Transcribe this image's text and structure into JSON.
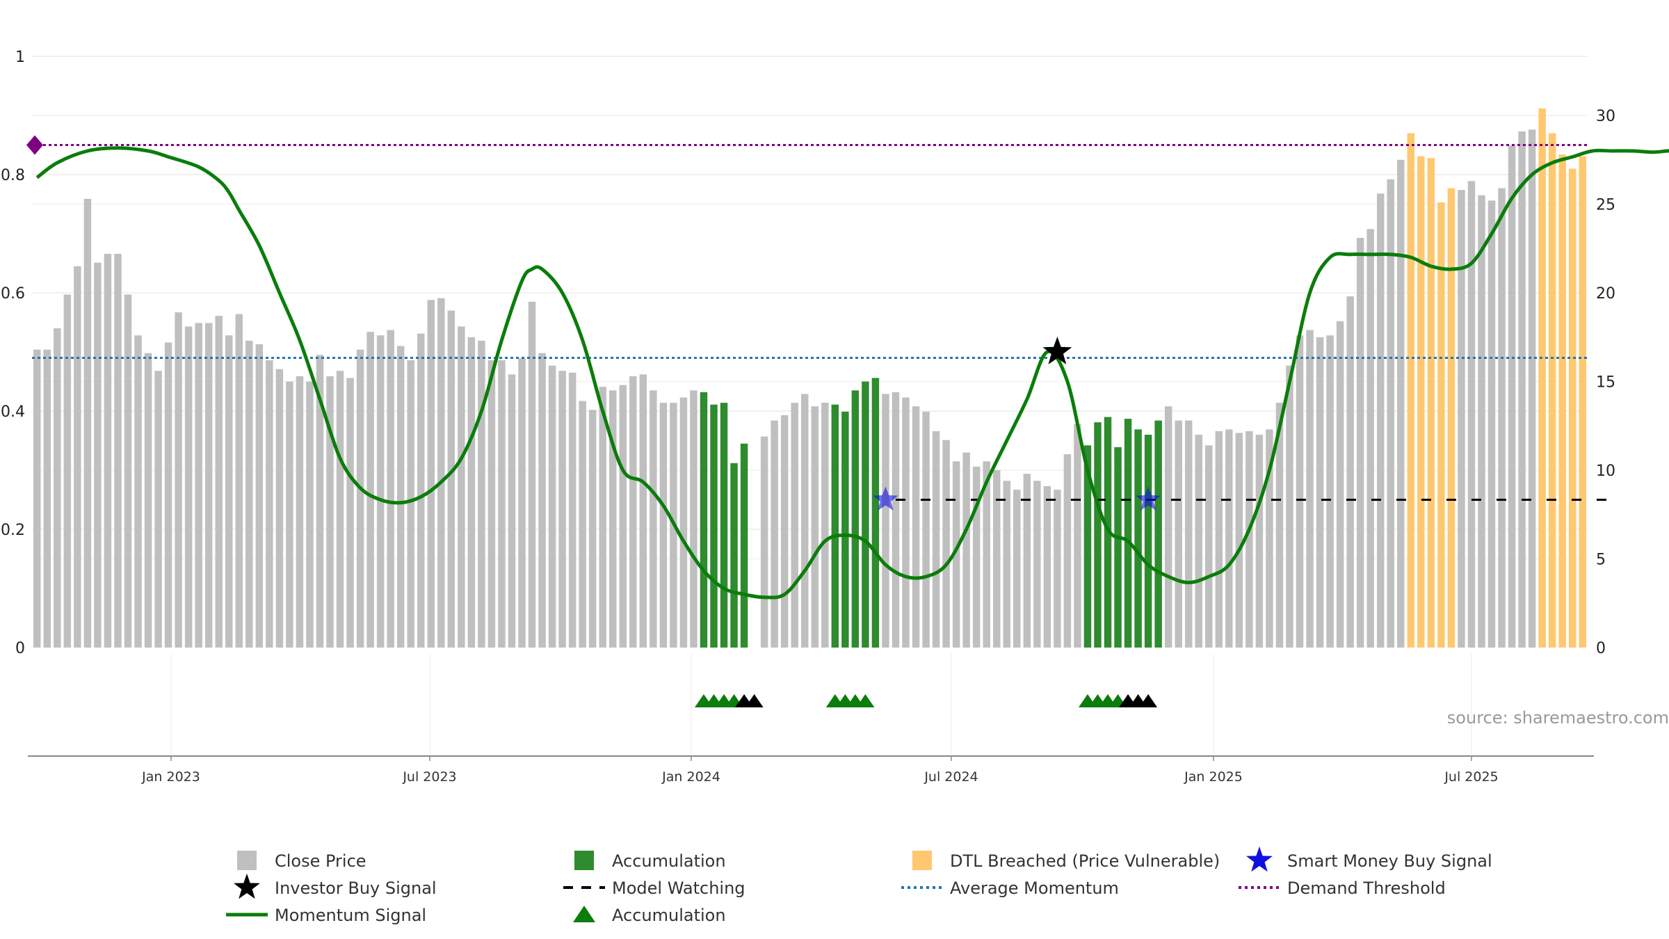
{
  "chart_data": {
    "type": "bar",
    "source": "source: sharemaestro.com",
    "y_left": {
      "ticks": [
        "0",
        "0.2",
        "0.4",
        "0.6",
        "0.8",
        "1"
      ],
      "range": [
        0,
        1
      ]
    },
    "y_right": {
      "ticks": [
        "0",
        "5",
        "10",
        "15",
        "20",
        "25",
        "30"
      ],
      "range": [
        0,
        30
      ]
    },
    "x_axis": {
      "ticks": [
        "Jan 2023",
        "Jul 2023",
        "Jan 2024",
        "Jul 2024",
        "Jan 2025",
        "Jul 2025"
      ]
    },
    "colors": {
      "close": "#bfbfbf",
      "accumulation": "#2e8b2e",
      "dtl": "#ffc870",
      "momentum": "#0a7d0a",
      "avg_momentum": "#1f77b4",
      "demand": "#800080",
      "watch": "#000000",
      "smart_money": "#1010e0",
      "investor": "#000000"
    },
    "close_prices": [
      16.8,
      16.8,
      18.0,
      19.9,
      21.5,
      25.3,
      21.7,
      22.2,
      22.2,
      19.9,
      17.6,
      16.6,
      15.6,
      17.2,
      18.9,
      18.1,
      18.3,
      18.3,
      18.7,
      17.6,
      18.8,
      17.3,
      17.1,
      16.2,
      15.7,
      15.0,
      15.3,
      15.0,
      16.5,
      15.3,
      15.6,
      15.2,
      16.8,
      17.8,
      17.6,
      17.9,
      17.0,
      16.2,
      17.7,
      19.6,
      19.7,
      19.0,
      18.1,
      17.5,
      17.3,
      16.2,
      16.2,
      15.4,
      16.3,
      19.5,
      16.6,
      15.9,
      15.6,
      15.5,
      13.9,
      13.4,
      14.7,
      14.5,
      14.8,
      15.3,
      15.4,
      14.5,
      13.8,
      13.8,
      14.1,
      14.5,
      14.4,
      13.7,
      13.8,
      10.4,
      11.5,
      null,
      11.9,
      12.8,
      13.1,
      13.8,
      14.3,
      13.6,
      13.8,
      13.7,
      13.3,
      14.5,
      15.0,
      15.2,
      14.3,
      14.4,
      14.1,
      13.6,
      13.3,
      12.2,
      11.7,
      10.5,
      11.0,
      10.2,
      10.5,
      10.0,
      9.4,
      8.9,
      9.8,
      9.4,
      9.1,
      8.9,
      10.9,
      12.6,
      11.4,
      12.7,
      13.0,
      11.3,
      12.9,
      12.3,
      12.0,
      12.8,
      13.6,
      12.8,
      12.8,
      12.0,
      11.4,
      12.2,
      12.3,
      12.1,
      12.2,
      12.0,
      12.3,
      13.8,
      15.9,
      17.6,
      17.9,
      17.5,
      17.6,
      18.4,
      19.8,
      23.1,
      23.6,
      25.6,
      26.4,
      27.5,
      29.0,
      27.7,
      27.6,
      25.1,
      25.9,
      25.8,
      26.3,
      25.5,
      25.2,
      25.9,
      28.3,
      29.1,
      29.2,
      30.4,
      29.0,
      27.8,
      27.0,
      27.7
    ],
    "accumulation_bars": [
      66,
      67,
      68,
      69,
      70,
      79,
      80,
      81,
      82,
      83,
      104,
      105,
      106,
      107,
      108,
      109,
      110,
      111
    ],
    "dtl_bars": [
      136,
      137,
      138,
      139,
      140,
      149,
      150,
      151,
      152,
      153,
      154,
      155
    ],
    "momentum": [
      [
        0,
        0.795
      ],
      [
        2,
        0.82
      ],
      [
        5,
        0.84
      ],
      [
        8,
        0.845
      ],
      [
        11,
        0.84
      ],
      [
        13,
        0.83
      ],
      [
        16,
        0.813
      ],
      [
        18,
        0.79
      ],
      [
        19,
        0.77
      ],
      [
        20,
        0.74
      ],
      [
        22,
        0.68
      ],
      [
        24,
        0.6
      ],
      [
        26,
        0.52
      ],
      [
        28,
        0.42
      ],
      [
        30,
        0.32
      ],
      [
        32,
        0.27
      ],
      [
        34,
        0.25
      ],
      [
        36,
        0.245
      ],
      [
        38,
        0.255
      ],
      [
        40,
        0.28
      ],
      [
        42,
        0.32
      ],
      [
        44,
        0.4
      ],
      [
        46,
        0.52
      ],
      [
        48,
        0.62
      ],
      [
        49,
        0.64
      ],
      [
        50,
        0.64
      ],
      [
        52,
        0.6
      ],
      [
        54,
        0.52
      ],
      [
        56,
        0.4
      ],
      [
        58,
        0.3
      ],
      [
        60,
        0.28
      ],
      [
        62,
        0.24
      ],
      [
        64,
        0.18
      ],
      [
        66,
        0.13
      ],
      [
        68,
        0.1
      ],
      [
        70,
        0.09
      ],
      [
        72,
        0.085
      ],
      [
        74,
        0.09
      ],
      [
        76,
        0.13
      ],
      [
        78,
        0.18
      ],
      [
        80,
        0.19
      ],
      [
        82,
        0.18
      ],
      [
        84,
        0.14
      ],
      [
        86,
        0.12
      ],
      [
        88,
        0.12
      ],
      [
        90,
        0.14
      ],
      [
        92,
        0.2
      ],
      [
        94,
        0.28
      ],
      [
        96,
        0.35
      ],
      [
        98,
        0.42
      ],
      [
        100,
        0.5
      ],
      [
        102,
        0.45
      ],
      [
        104,
        0.3
      ],
      [
        106,
        0.2
      ],
      [
        108,
        0.18
      ],
      [
        110,
        0.14
      ],
      [
        112,
        0.12
      ],
      [
        114,
        0.11
      ],
      [
        116,
        0.12
      ],
      [
        118,
        0.14
      ],
      [
        120,
        0.2
      ],
      [
        122,
        0.3
      ],
      [
        124,
        0.45
      ],
      [
        126,
        0.6
      ],
      [
        128,
        0.66
      ],
      [
        130,
        0.665
      ],
      [
        132,
        0.665
      ],
      [
        134,
        0.665
      ],
      [
        136,
        0.66
      ],
      [
        138,
        0.645
      ],
      [
        140,
        0.64
      ],
      [
        142,
        0.65
      ],
      [
        144,
        0.7
      ],
      [
        146,
        0.76
      ],
      [
        148,
        0.8
      ],
      [
        150,
        0.82
      ],
      [
        152,
        0.83
      ],
      [
        154,
        0.84
      ],
      [
        156,
        0.84
      ],
      [
        158,
        0.84
      ],
      [
        160,
        0.838
      ],
      [
        162,
        0.84
      ],
      [
        163,
        0.83
      ],
      [
        164,
        0.8
      ],
      [
        165,
        0.79
      ],
      [
        166,
        0.795
      ]
    ],
    "average_momentum": 0.49,
    "demand_threshold": 0.85,
    "model_watching": {
      "from_bar": 85,
      "to_bar": 156,
      "level": 0.25
    },
    "smart_money_signals": [
      [
        84,
        0.25
      ],
      [
        110,
        0.25
      ]
    ],
    "investor_signals": [
      [
        101,
        0.5
      ]
    ],
    "accumulation_triangles": [
      [
        66,
        "green"
      ],
      [
        67,
        "green"
      ],
      [
        68,
        "green"
      ],
      [
        69,
        "green"
      ],
      [
        70,
        "black"
      ],
      [
        71,
        "black"
      ],
      [
        79,
        "green"
      ],
      [
        80,
        "green"
      ],
      [
        81,
        "green"
      ],
      [
        82,
        "green"
      ],
      [
        104,
        "green"
      ],
      [
        105,
        "green"
      ],
      [
        106,
        "green"
      ],
      [
        107,
        "green"
      ],
      [
        108,
        "black"
      ],
      [
        109,
        "black"
      ],
      [
        110,
        "black"
      ]
    ],
    "legend": [
      {
        "label": "Close Price",
        "kind": "square",
        "color": "#bfbfbf"
      },
      {
        "label": "Investor Buy Signal",
        "kind": "star",
        "color": "#000000"
      },
      {
        "label": "Momentum Signal",
        "kind": "line",
        "color": "#0a7d0a"
      },
      {
        "label": "Accumulation",
        "kind": "square",
        "color": "#2e8b2e"
      },
      {
        "label": "Model Watching",
        "kind": "dash",
        "color": "#000000"
      },
      {
        "label": "Accumulation",
        "kind": "triangle",
        "color": "#0a7d0a"
      },
      {
        "label": "DTL Breached (Price Vulnerable)",
        "kind": "square",
        "color": "#ffc870"
      },
      {
        "label": "Average Momentum",
        "kind": "dot",
        "color": "#1f77b4"
      },
      {
        "label": "Smart Money Buy Signal",
        "kind": "star",
        "color": "#1010e0"
      },
      {
        "label": "Demand Threshold",
        "kind": "dot",
        "color": "#800080"
      }
    ]
  }
}
